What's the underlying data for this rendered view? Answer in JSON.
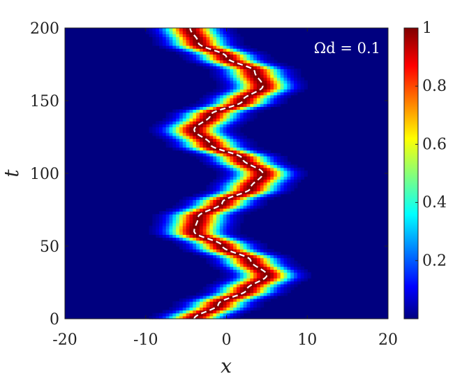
{
  "chart_data": {
    "type": "heatmap",
    "title": "",
    "xlabel": "x",
    "ylabel": "t",
    "xlim": [
      -20,
      20
    ],
    "ylim": [
      0,
      200
    ],
    "x_ticks": [
      -20,
      -10,
      0,
      10,
      20
    ],
    "x_tick_labels": [
      "-20",
      "-10",
      "0",
      "10",
      "20"
    ],
    "y_ticks": [
      0,
      50,
      100,
      150,
      200
    ],
    "y_tick_labels": [
      "0",
      "50",
      "100",
      "150",
      "200"
    ],
    "annotation": "Ωd = 0.1",
    "colormap": "jet",
    "color_range": [
      0,
      1
    ],
    "colorbar_ticks": [
      0.2,
      0.4,
      0.6,
      0.8,
      1
    ],
    "colorbar_tick_labels": [
      "0.2",
      "0.4",
      "0.6",
      "0.8",
      "1"
    ],
    "trajectory": {
      "style": "dashed",
      "color": "#ffffff",
      "t": [
        0,
        10,
        20,
        30,
        40,
        50,
        60,
        70,
        80,
        90,
        100,
        110,
        120,
        130,
        140,
        150,
        160,
        170,
        180,
        190,
        200
      ],
      "x": [
        -4.0,
        -1.0,
        2.5,
        5.0,
        3.0,
        -0.5,
        -4.0,
        -3.5,
        -0.5,
        3.0,
        4.5,
        2.0,
        -2.0,
        -4.0,
        -2.0,
        2.0,
        4.5,
        3.5,
        0.0,
        -3.5,
        -4.5
      ]
    },
    "density": {
      "peak_width": 2.0,
      "peak_value": 1.0,
      "background_value": 0.0
    }
  }
}
